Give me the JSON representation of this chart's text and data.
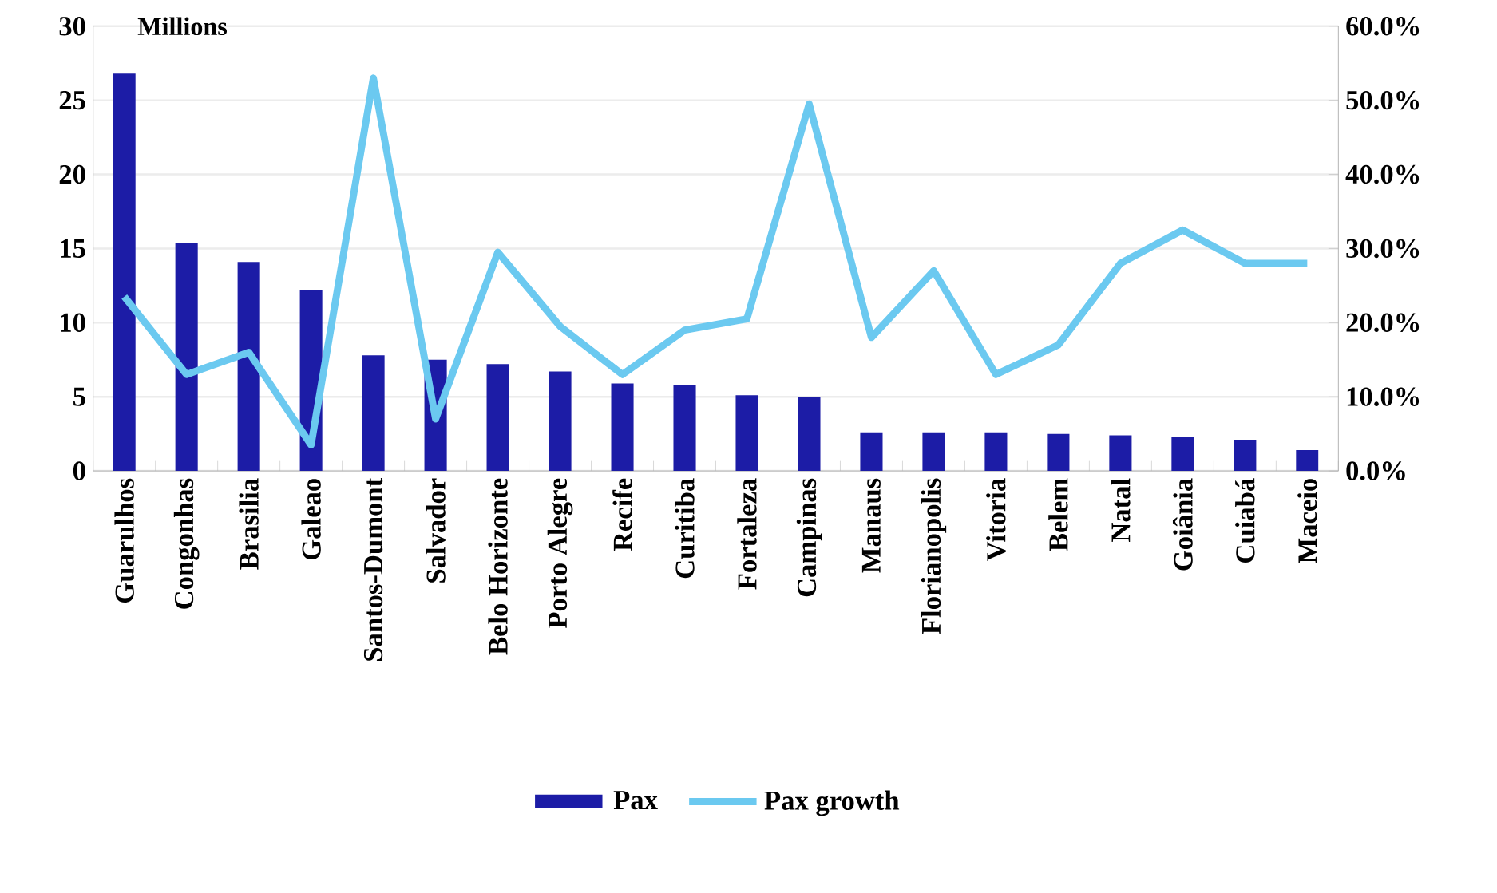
{
  "chart_data": {
    "type": "bar",
    "ylabel": "Millions",
    "categories": [
      "Guarulhos",
      "Congonhas",
      "Brasilia",
      "Galeao",
      "Santos-Dumont",
      "Salvador",
      "Belo Horizonte",
      "Porto Alegre",
      "Recife",
      "Curitiba",
      "Fortaleza",
      "Campinas",
      "Manaus",
      "Florianopolis",
      "Vitoria",
      "Belem",
      "Natal",
      "Goiânia",
      "Cuiabá",
      "Maceio"
    ],
    "series": [
      {
        "name": "Pax",
        "color": "#1c1ca6",
        "values": [
          26.8,
          15.4,
          14.1,
          12.2,
          7.8,
          7.5,
          7.2,
          6.7,
          5.9,
          5.8,
          5.1,
          5.0,
          2.6,
          2.6,
          2.6,
          2.5,
          2.4,
          2.3,
          2.1,
          1.4
        ]
      },
      {
        "name": "Pax growth",
        "type": "line",
        "axis": "y2",
        "color": "#6bc9f0",
        "values": [
          23.5,
          13,
          16,
          3.5,
          53,
          7,
          29.5,
          19.5,
          13,
          19,
          20.5,
          49.5,
          18,
          27,
          13,
          17,
          28,
          32.5,
          28,
          28
        ]
      }
    ],
    "ylim": [
      0,
      30
    ],
    "yticks": [
      0,
      5,
      10,
      15,
      20,
      25,
      30
    ],
    "y2lim": [
      0,
      60
    ],
    "y2ticks": [
      {
        "value": 0,
        "label": "0.0%"
      },
      {
        "value": 10,
        "label": "10.0%"
      },
      {
        "value": 20,
        "label": "20.0%"
      },
      {
        "value": 30,
        "label": "30.0%"
      },
      {
        "value": 40,
        "label": "40.0%"
      },
      {
        "value": 50,
        "label": "50.0%"
      },
      {
        "value": 60,
        "label": "60.0%"
      }
    ],
    "grid": "y",
    "legend": "bottom"
  }
}
